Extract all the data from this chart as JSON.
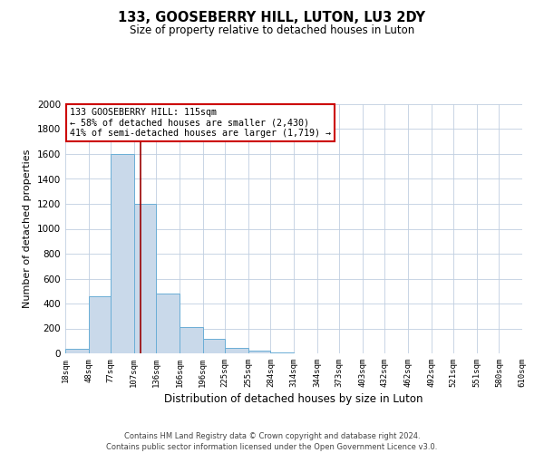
{
  "title": "133, GOOSEBERRY HILL, LUTON, LU3 2DY",
  "subtitle": "Size of property relative to detached houses in Luton",
  "xlabel": "Distribution of detached houses by size in Luton",
  "ylabel": "Number of detached properties",
  "bar_color": "#c9d9ea",
  "bar_edge_color": "#6baed6",
  "vline_color": "#990000",
  "vline_x": 115,
  "bin_edges": [
    18,
    48,
    77,
    107,
    136,
    166,
    196,
    225,
    255,
    284,
    314,
    344,
    373,
    403,
    432,
    462,
    492,
    521,
    551,
    580,
    610
  ],
  "bin_counts": [
    35,
    460,
    1600,
    1200,
    480,
    210,
    120,
    45,
    20,
    5,
    0,
    0,
    0,
    0,
    0,
    0,
    0,
    0,
    0,
    0
  ],
  "ylim": [
    0,
    2000
  ],
  "yticks": [
    0,
    200,
    400,
    600,
    800,
    1000,
    1200,
    1400,
    1600,
    1800,
    2000
  ],
  "annotation_box_text": "133 GOOSEBERRY HILL: 115sqm\n← 58% of detached houses are smaller (2,430)\n41% of semi-detached houses are larger (1,719) →",
  "annotation_box_color": "#ffffff",
  "annotation_box_edge_color": "#cc0000",
  "footnote1": "Contains HM Land Registry data © Crown copyright and database right 2024.",
  "footnote2": "Contains public sector information licensed under the Open Government Licence v3.0.",
  "background_color": "#ffffff",
  "grid_color": "#c0cfe0",
  "tick_labels": [
    "18sqm",
    "48sqm",
    "77sqm",
    "107sqm",
    "136sqm",
    "166sqm",
    "196sqm",
    "225sqm",
    "255sqm",
    "284sqm",
    "314sqm",
    "344sqm",
    "373sqm",
    "403sqm",
    "432sqm",
    "462sqm",
    "492sqm",
    "521sqm",
    "551sqm",
    "580sqm",
    "610sqm"
  ]
}
